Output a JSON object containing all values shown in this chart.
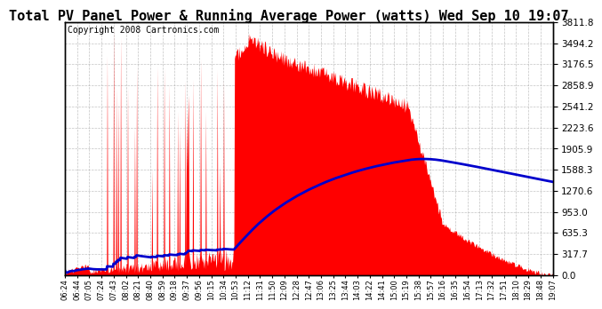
{
  "title": "Total PV Panel Power & Running Average Power (watts) Wed Sep 10 19:07",
  "copyright": "Copyright 2008 Cartronics.com",
  "y_ticks": [
    0.0,
    317.7,
    635.3,
    953.0,
    1270.6,
    1588.3,
    1905.9,
    2223.6,
    2541.2,
    2858.9,
    3176.5,
    3494.2,
    3811.8
  ],
  "x_labels": [
    "06:24",
    "06:44",
    "07:05",
    "07:24",
    "07:43",
    "08:02",
    "08:21",
    "08:40",
    "08:59",
    "09:18",
    "09:37",
    "09:56",
    "10:15",
    "10:34",
    "10:53",
    "11:12",
    "11:31",
    "11:50",
    "12:09",
    "12:28",
    "12:47",
    "13:06",
    "13:25",
    "13:44",
    "14:03",
    "14:22",
    "14:41",
    "15:00",
    "15:19",
    "15:38",
    "15:57",
    "16:16",
    "16:35",
    "16:54",
    "17:13",
    "17:32",
    "17:51",
    "18:10",
    "18:29",
    "18:48",
    "19:07"
  ],
  "y_max": 3811.8,
  "y_min": 0.0,
  "fill_color": "#FF0000",
  "line_color": "#0000CC",
  "background_color": "#FFFFFF",
  "grid_color": "#AAAAAA",
  "title_fontsize": 11,
  "copyright_fontsize": 7
}
